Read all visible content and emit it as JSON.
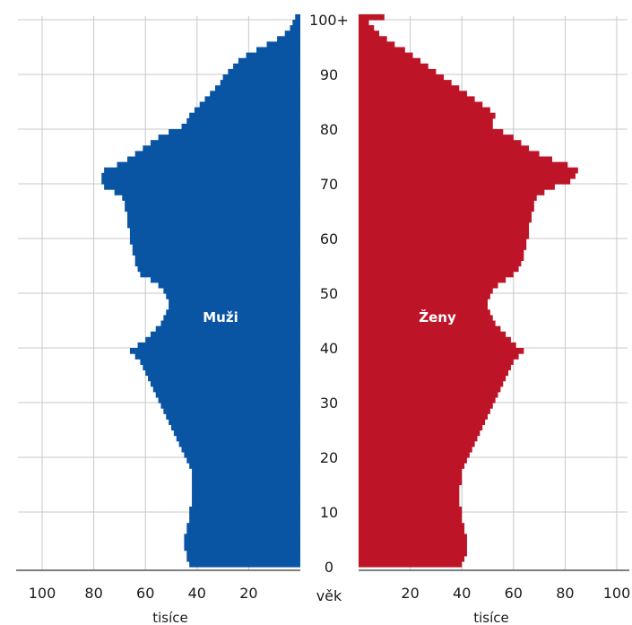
{
  "chart_data": {
    "type": "bar",
    "orientation": "horizontal-population-pyramid",
    "title": "",
    "axis_label_center": "věk",
    "x_unit_label": "tisíce",
    "xlim": [
      0,
      100
    ],
    "x_ticks": [
      "100",
      "80",
      "60",
      "40",
      "20"
    ],
    "x_ticks_right": [
      "20",
      "40",
      "60",
      "80",
      "100"
    ],
    "age_ticks": [
      "0",
      "10",
      "20",
      "30",
      "40",
      "50",
      "60",
      "70",
      "80",
      "90",
      "100+"
    ],
    "grid": true,
    "colors": {
      "male": "#0a55a3",
      "female": "#be1428"
    },
    "series": [
      {
        "name": "Muži",
        "values": [
          43,
          44,
          44,
          45,
          45,
          45,
          44,
          44,
          43,
          43,
          43,
          42,
          42,
          42,
          42,
          42,
          42,
          42,
          43,
          44,
          45,
          46,
          47,
          48,
          49,
          50,
          51,
          52,
          53,
          54,
          55,
          56,
          57,
          58,
          59,
          60,
          61,
          62,
          64,
          66,
          63,
          60,
          58,
          56,
          54,
          53,
          52,
          51,
          51,
          52,
          53,
          55,
          58,
          62,
          63,
          64,
          64,
          65,
          65,
          66,
          66,
          66,
          67,
          67,
          67,
          68,
          68,
          69,
          72,
          76,
          77,
          77,
          76,
          71,
          67,
          64,
          61,
          58,
          55,
          51,
          46,
          44,
          43,
          41,
          39,
          37,
          35,
          33,
          31,
          30,
          28,
          26,
          24,
          21,
          17,
          13,
          9,
          6,
          4,
          3,
          2
        ]
      },
      {
        "name": "Ženy",
        "values": [
          40,
          41,
          42,
          42,
          42,
          42,
          41,
          41,
          40,
          40,
          40,
          39,
          39,
          39,
          39,
          40,
          40,
          40,
          41,
          42,
          43,
          44,
          45,
          46,
          47,
          48,
          49,
          50,
          51,
          52,
          53,
          54,
          55,
          56,
          57,
          58,
          59,
          60,
          62,
          64,
          61,
          59,
          57,
          55,
          53,
          52,
          51,
          50,
          50,
          51,
          52,
          54,
          57,
          60,
          62,
          63,
          64,
          64,
          65,
          65,
          66,
          66,
          66,
          67,
          67,
          68,
          68,
          69,
          72,
          76,
          82,
          84,
          85,
          81,
          75,
          70,
          66,
          63,
          60,
          56,
          52,
          52,
          53,
          51,
          48,
          45,
          42,
          39,
          36,
          33,
          30,
          27,
          24,
          21,
          18,
          14,
          11,
          8,
          6,
          4,
          10
        ]
      }
    ],
    "ages": [
      0,
      1,
      2,
      3,
      4,
      5,
      6,
      7,
      8,
      9,
      10,
      11,
      12,
      13,
      14,
      15,
      16,
      17,
      18,
      19,
      20,
      21,
      22,
      23,
      24,
      25,
      26,
      27,
      28,
      29,
      30,
      31,
      32,
      33,
      34,
      35,
      36,
      37,
      38,
      39,
      40,
      41,
      42,
      43,
      44,
      45,
      46,
      47,
      48,
      49,
      50,
      51,
      52,
      53,
      54,
      55,
      56,
      57,
      58,
      59,
      60,
      61,
      62,
      63,
      64,
      65,
      66,
      67,
      68,
      69,
      70,
      71,
      72,
      73,
      74,
      75,
      76,
      77,
      78,
      79,
      80,
      81,
      82,
      83,
      84,
      85,
      86,
      87,
      88,
      89,
      90,
      91,
      92,
      93,
      94,
      95,
      96,
      97,
      98,
      99,
      100
    ]
  }
}
